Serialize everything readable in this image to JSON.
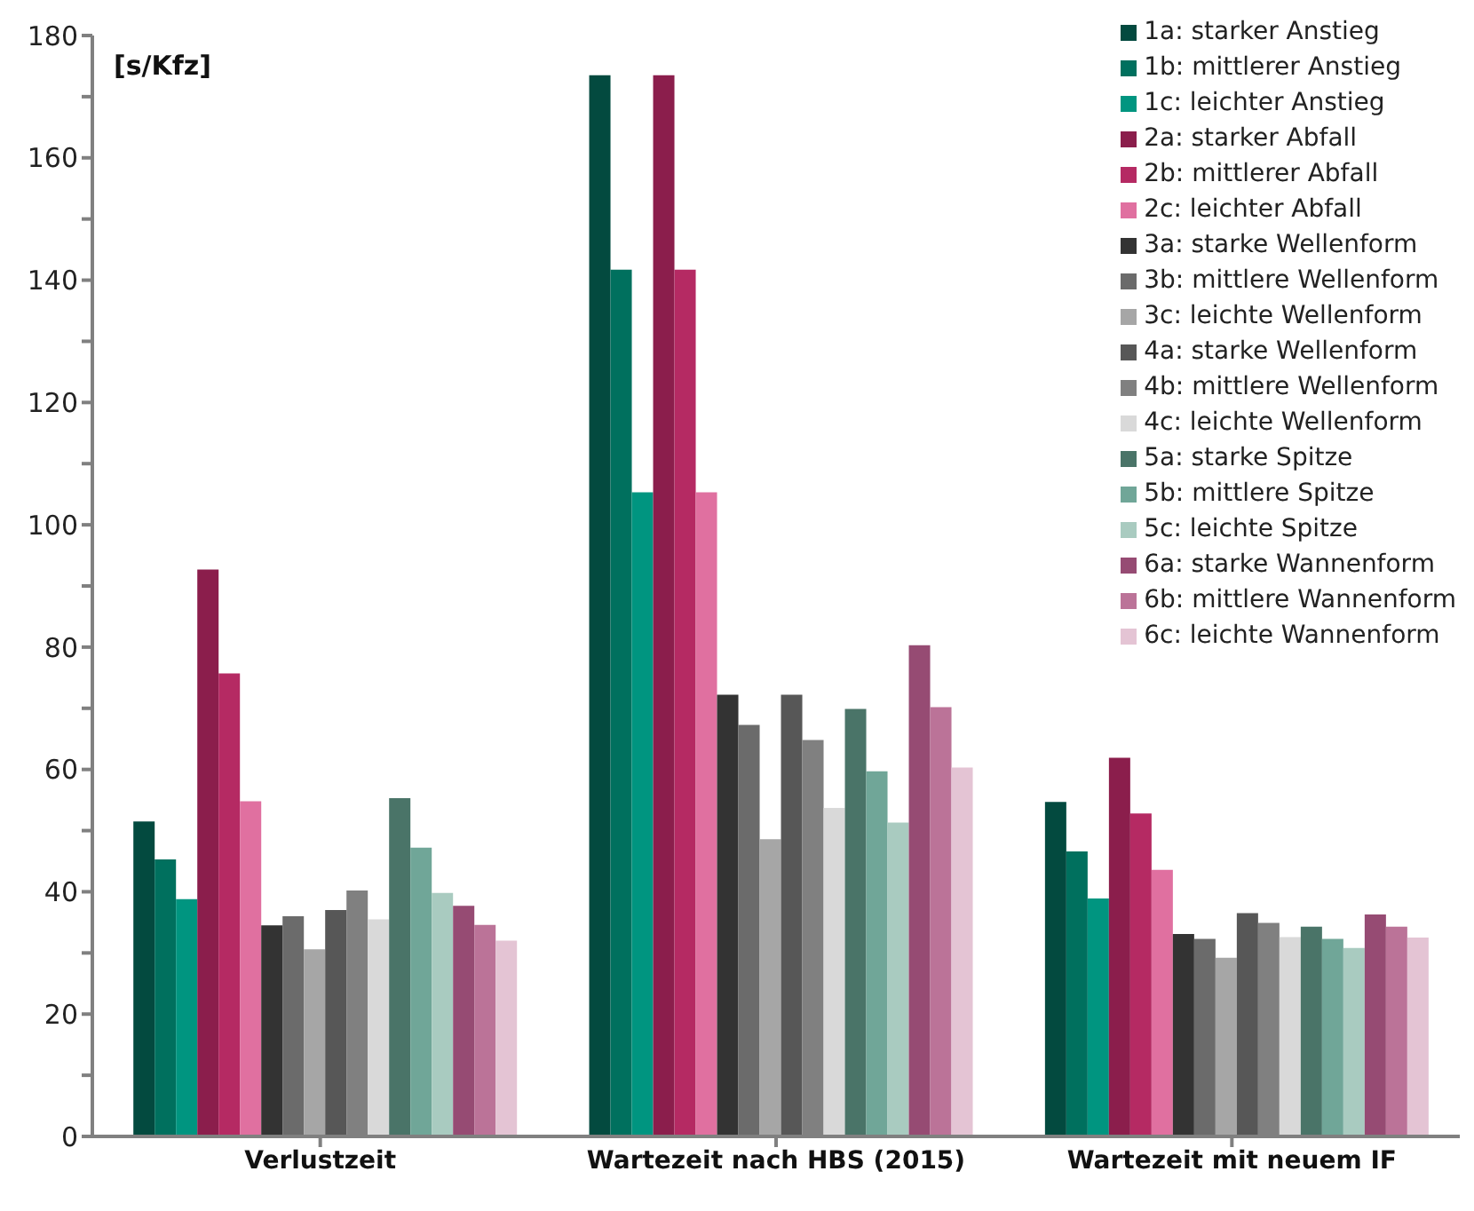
{
  "chart_data": {
    "type": "bar",
    "ylabel": "[s/Kfz]",
    "categories": [
      "Verlustzeit",
      "Wartezeit nach HBS (2015)",
      "Wartezeit mit neuem IF"
    ],
    "series": [
      {
        "name": "1a: starker Anstieg",
        "color": "#034a3f",
        "values": [
          51.5,
          173.5,
          54.7
        ]
      },
      {
        "name": "1b: mittlerer Anstieg",
        "color": "#00705e",
        "values": [
          45.3,
          141.7,
          46.6
        ]
      },
      {
        "name": "1c: leichter Anstieg",
        "color": "#009580",
        "values": [
          38.8,
          105.3,
          38.9
        ]
      },
      {
        "name": "2a: starker Abfall",
        "color": "#8b1e4c",
        "values": [
          92.7,
          173.5,
          61.9
        ]
      },
      {
        "name": "2b: mittlerer Abfall",
        "color": "#b52a63",
        "values": [
          75.7,
          141.7,
          52.8
        ]
      },
      {
        "name": "2c: leichter Abfall",
        "color": "#e070a0",
        "values": [
          54.8,
          105.3,
          43.6
        ]
      },
      {
        "name": "3a: starke Wellenform",
        "color": "#333333",
        "values": [
          34.5,
          72.2,
          33.1
        ]
      },
      {
        "name": "3b: mittlere Wellenform",
        "color": "#6b6b6b",
        "values": [
          36,
          67.3,
          32.3
        ]
      },
      {
        "name": "3c: leichte Wellenform",
        "color": "#a6a6a6",
        "values": [
          30.6,
          48.6,
          29.2
        ]
      },
      {
        "name": "4a: starke Wellenform",
        "color": "#575757",
        "values": [
          37,
          72.2,
          36.5
        ]
      },
      {
        "name": "4b: mittlere Wellenform",
        "color": "#808080",
        "values": [
          40.2,
          64.8,
          34.9
        ]
      },
      {
        "name": "4c: leichte Wellenform",
        "color": "#d9d9d9",
        "values": [
          35.5,
          53.7,
          32.6
        ]
      },
      {
        "name": "5a: starke Spitze",
        "color": "#4a7468",
        "values": [
          55.3,
          69.9,
          34.3
        ]
      },
      {
        "name": "5b: mittlere Spitze",
        "color": "#70a698",
        "values": [
          47.2,
          59.7,
          32.3
        ]
      },
      {
        "name": "5c: leichte Spitze",
        "color": "#a9cbc0",
        "values": [
          39.8,
          51.3,
          30.8
        ]
      },
      {
        "name": "6a: starke Wannenform",
        "color": "#964b73",
        "values": [
          37.7,
          80.3,
          36.3
        ]
      },
      {
        "name": "6b: mittlere Wannenform",
        "color": "#bb7398",
        "values": [
          34.6,
          70.2,
          34.3
        ]
      },
      {
        "name": "6c: leichte Wannenform",
        "color": "#e4c4d4",
        "values": [
          32,
          60.3,
          32.5
        ]
      }
    ],
    "ylim": [
      0,
      180
    ],
    "yticks": [
      0,
      {
        "value": 10,
        "label": null
      },
      20,
      {
        "value": 30,
        "label": null
      },
      40,
      {
        "value": 50,
        "label": null
      },
      60,
      {
        "value": 70,
        "label": null
      },
      80,
      {
        "value": 90,
        "label": null
      },
      100,
      {
        "value": 110,
        "label": null
      },
      120,
      {
        "value": 130,
        "label": null
      },
      140,
      {
        "value": 150,
        "label": null
      },
      160,
      {
        "value": 170,
        "label": null
      },
      180
    ],
    "grid": false,
    "legend": "top right"
  }
}
